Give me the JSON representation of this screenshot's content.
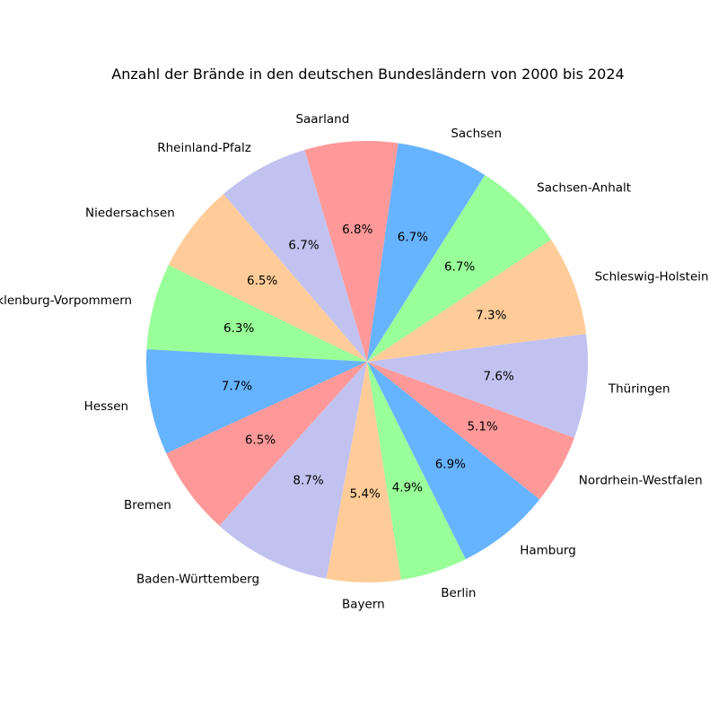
{
  "chart_data": {
    "type": "pie",
    "title": "Anzahl der Brände in den deutschen Bundesländern von 2000 bis 2024",
    "categories": [
      "Baden-Württemberg",
      "Bayern",
      "Berlin",
      "Hamburg",
      "Nordrhein-Westfalen",
      "Thüringen",
      "Schleswig-Holstein",
      "Sachsen-Anhalt",
      "Sachsen",
      "Saarland",
      "Rheinland-Pfalz",
      "Niedersachsen",
      "Mecklenburg-Vorpommern",
      "Hessen",
      "Bremen"
    ],
    "values": [
      8.7,
      5.4,
      4.9,
      6.9,
      5.1,
      7.6,
      7.3,
      6.7,
      6.7,
      6.8,
      6.7,
      6.5,
      6.3,
      7.7,
      6.5
    ],
    "value_labels": [
      "8.7%",
      "5.4%",
      "4.9%",
      "6.9%",
      "5.1%",
      "7.6%",
      "7.3%",
      "6.7%",
      "6.7%",
      "6.8%",
      "6.7%",
      "6.5%",
      "6.3%",
      "7.7%",
      "6.5%"
    ],
    "colors": [
      "#c2c2f0",
      "#ffcc99",
      "#99ff99",
      "#66b3ff",
      "#ff9999"
    ],
    "start_angle_deg": 228,
    "direction": "counterclockwise",
    "legend": "none"
  }
}
